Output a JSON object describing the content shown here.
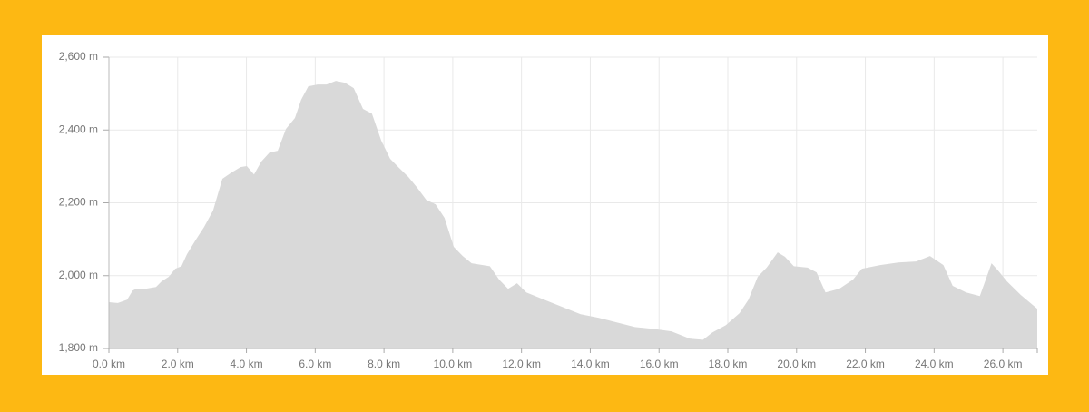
{
  "chart_data": {
    "type": "area",
    "color": "#d9d9d9",
    "grid": true,
    "x": [
      0,
      0.26,
      0.53,
      0.69,
      0.79,
      1.06,
      1.37,
      1.53,
      1.74,
      1.93,
      2.11,
      2.27,
      2.51,
      2.77,
      3.03,
      3.3,
      3.56,
      3.83,
      4.01,
      4.22,
      4.43,
      4.67,
      4.91,
      5.15,
      5.41,
      5.59,
      5.8,
      6.07,
      6.33,
      6.6,
      6.86,
      7.12,
      7.39,
      7.65,
      7.92,
      8.18,
      8.44,
      8.71,
      8.97,
      9.23,
      9.5,
      9.76,
      10.03,
      10.29,
      10.55,
      11.08,
      11.35,
      11.61,
      11.87,
      12.14,
      12.66,
      13.72,
      14.25,
      15.3,
      15.83,
      16.36,
      16.89,
      17.28,
      17.55,
      17.94,
      18.34,
      18.6,
      18.87,
      19.13,
      19.45,
      19.66,
      19.92,
      20.32,
      20.58,
      20.84,
      21.24,
      21.64,
      21.9,
      22.43,
      22.96,
      23.48,
      23.88,
      24.27,
      24.54,
      24.93,
      25.33,
      25.67,
      25.86,
      26.12,
      26.52,
      27.0
    ],
    "values": [
      1927,
      1925,
      1934,
      1959,
      1964,
      1964,
      1969,
      1984,
      1997,
      2019,
      2026,
      2059,
      2096,
      2134,
      2179,
      2266,
      2283,
      2298,
      2301,
      2278,
      2313,
      2338,
      2343,
      2403,
      2433,
      2483,
      2520,
      2525,
      2525,
      2535,
      2530,
      2515,
      2458,
      2445,
      2371,
      2321,
      2296,
      2271,
      2241,
      2208,
      2196,
      2159,
      2079,
      2054,
      2034,
      2026,
      1989,
      1964,
      1979,
      1954,
      1934,
      1894,
      1884,
      1859,
      1854,
      1847,
      1827,
      1824,
      1844,
      1864,
      1897,
      1934,
      1997,
      2022,
      2064,
      2052,
      2026,
      2022,
      2009,
      1954,
      1964,
      1989,
      2019,
      2029,
      2036,
      2039,
      2054,
      2029,
      1972,
      1954,
      1944,
      2034,
      2014,
      1984,
      1947,
      1909
    ],
    "xlim": [
      0,
      27
    ],
    "xticks": [
      {
        "value": 0,
        "label": "0.0 km"
      },
      {
        "value": 2,
        "label": "2.0 km"
      },
      {
        "value": 4,
        "label": "4.0 km"
      },
      {
        "value": 6,
        "label": "6.0 km"
      },
      {
        "value": 8,
        "label": "8.0 km"
      },
      {
        "value": 10,
        "label": "10.0 km"
      },
      {
        "value": 12,
        "label": "12.0 km"
      },
      {
        "value": 14,
        "label": "14.0 km"
      },
      {
        "value": 16,
        "label": "16.0 km"
      },
      {
        "value": 18,
        "label": "18.0 km"
      },
      {
        "value": 20,
        "label": "20.0 km"
      },
      {
        "value": 22,
        "label": "22.0 km"
      },
      {
        "value": 24,
        "label": "24.0 km"
      },
      {
        "value": 26,
        "label": "26.0 km"
      }
    ],
    "ylim": [
      1800,
      2600
    ],
    "yticks": [
      {
        "value": 1800,
        "label": "1,800 m"
      },
      {
        "value": 2000,
        "label": "2,000 m"
      },
      {
        "value": 2200,
        "label": "2,200 m"
      },
      {
        "value": 2400,
        "label": "2,400 m"
      },
      {
        "value": 2600,
        "label": "2,600 m"
      }
    ]
  }
}
